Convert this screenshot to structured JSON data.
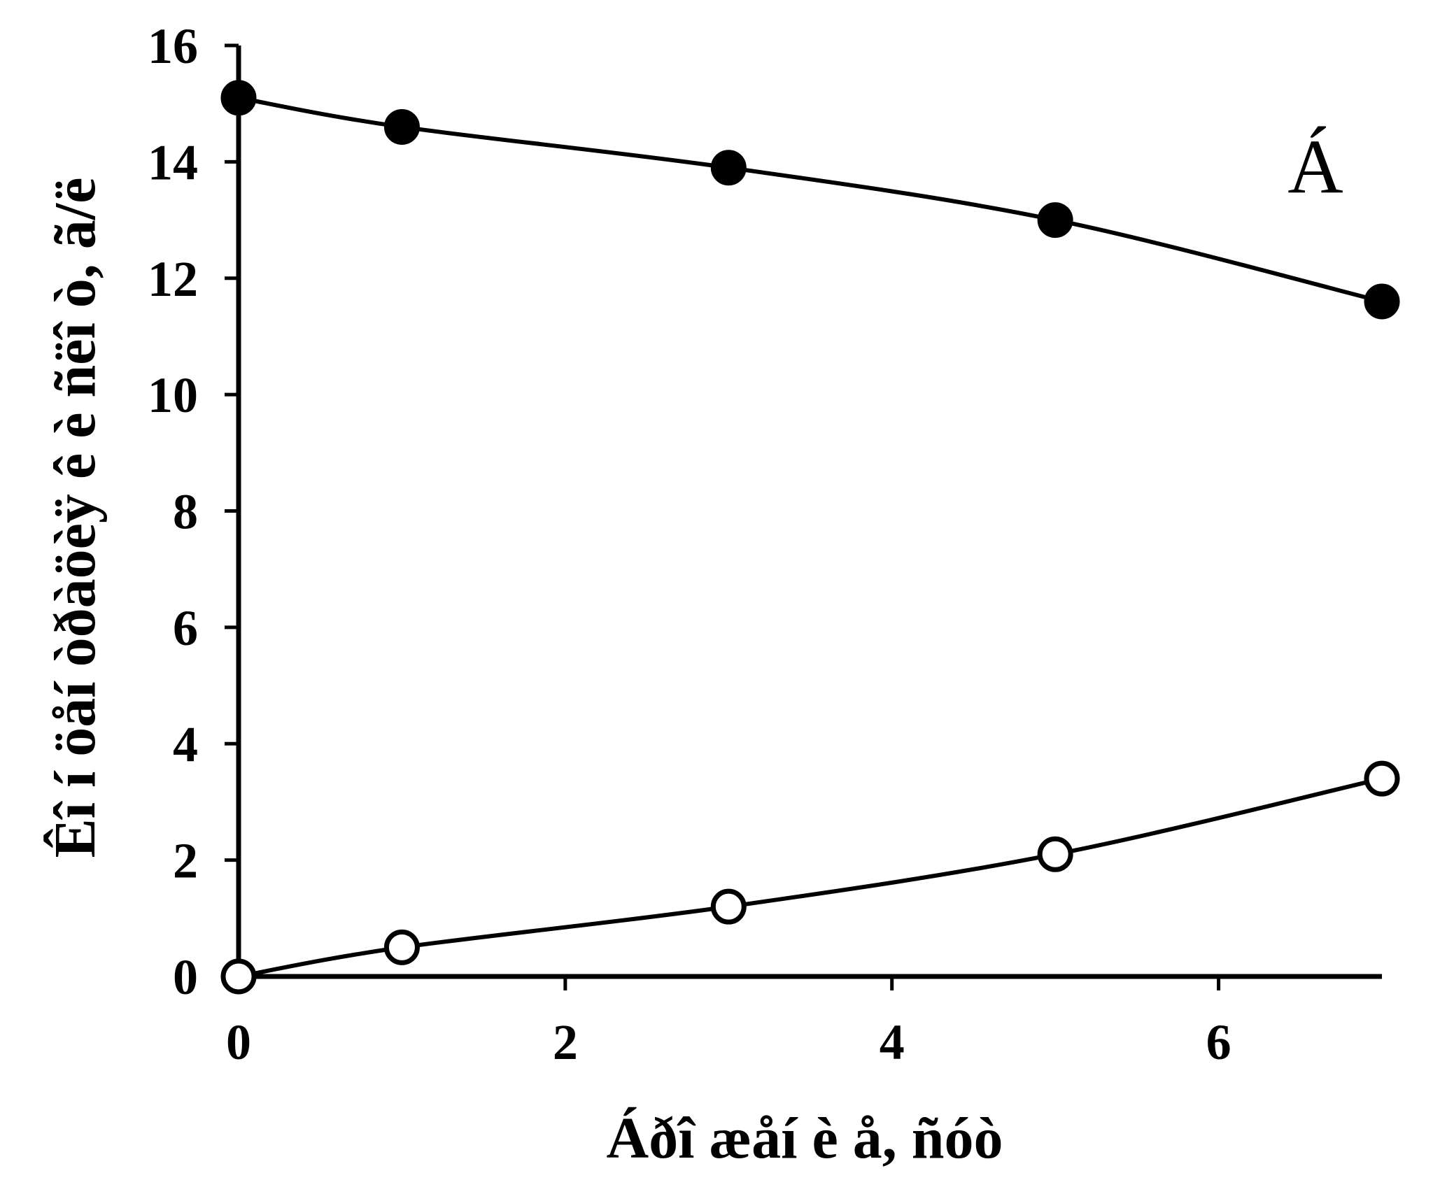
{
  "chart_data": {
    "type": "line",
    "title": "",
    "panel_label": "Á",
    "xlabel": "Áðî æåí è å, ñóò",
    "ylabel": "Êî í öåí òðàöèÿ ê è ñëî ò, ã/ë",
    "xlim": [
      0,
      7
    ],
    "ylim": [
      0,
      16
    ],
    "x_ticks": [
      "0",
      "2",
      "4",
      "6"
    ],
    "y_ticks": [
      "0",
      "2",
      "4",
      "6",
      "8",
      "10",
      "12",
      "14",
      "16"
    ],
    "grid": false,
    "legend": "none",
    "series": [
      {
        "marker": "filled-circle",
        "color": "#000000",
        "x": [
          0,
          1,
          3,
          5,
          7
        ],
        "y": [
          15.1,
          14.6,
          13.9,
          13.0,
          11.6
        ]
      },
      {
        "marker": "open-circle",
        "color": "#000000",
        "x": [
          0,
          1,
          3,
          5,
          7
        ],
        "y": [
          0.0,
          0.5,
          1.2,
          2.1,
          3.4
        ]
      }
    ]
  }
}
